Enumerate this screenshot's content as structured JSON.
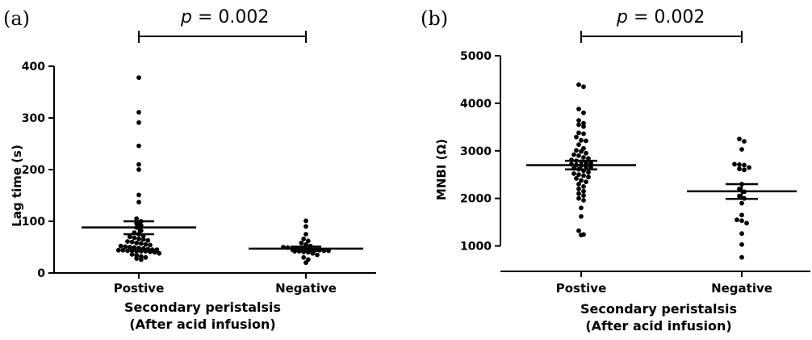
{
  "chart_data": [
    {
      "type": "scatter",
      "panel_label": "(a)",
      "annotation": {
        "p_symbol": "p",
        "p_text": " = 0.002"
      },
      "ylabel": "Lag time (s)",
      "xlabel_lines": [
        "Secondary peristalsis",
        "(After acid infusion)"
      ],
      "categories": [
        "Postive",
        "Negative"
      ],
      "ylim": [
        0,
        400
      ],
      "yticks": [
        0,
        100,
        200,
        300,
        400
      ],
      "grid": false,
      "series": [
        {
          "values": [
            378,
            311,
            291,
            246,
            210,
            200,
            151,
            137,
            105,
            100,
            96,
            92,
            88,
            82,
            78,
            75,
            72,
            70,
            68,
            66,
            65,
            63,
            61,
            60,
            58,
            57,
            55,
            54,
            52,
            51,
            50,
            49,
            48,
            47,
            46,
            45,
            45,
            44,
            44,
            43,
            43,
            42,
            42,
            42,
            41,
            40,
            38,
            36,
            34,
            32,
            30,
            28,
            26
          ],
          "mean": 88,
          "sem_low": 75,
          "sem_high": 100
        },
        {
          "values": [
            101,
            90,
            75,
            66,
            62,
            58,
            55,
            52,
            50,
            49,
            48,
            47,
            46,
            45,
            45,
            44,
            44,
            43,
            43,
            42,
            42,
            41,
            40,
            38,
            35,
            30,
            26,
            20
          ],
          "mean": 47,
          "sem_low": 43,
          "sem_high": 51
        }
      ]
    },
    {
      "type": "scatter",
      "panel_label": "(b)",
      "annotation": {
        "p_symbol": "p",
        "p_text": " = 0.002"
      },
      "ylabel": "MNBI (Ω)",
      "xlabel_lines": [
        "Secondary peristalsis",
        "(After acid infusion)"
      ],
      "categories": [
        "Postive",
        "Negative"
      ],
      "ylim": [
        500,
        5000
      ],
      "yticks": [
        1000,
        2000,
        3000,
        4000,
        5000
      ],
      "grid": false,
      "series": [
        {
          "values": [
            4390,
            4350,
            3880,
            3800,
            3640,
            3580,
            3550,
            3510,
            3380,
            3360,
            3290,
            3220,
            3210,
            3130,
            3050,
            3010,
            2990,
            2950,
            2920,
            2900,
            2860,
            2840,
            2810,
            2790,
            2770,
            2750,
            2740,
            2720,
            2700,
            2690,
            2670,
            2650,
            2630,
            2610,
            2580,
            2550,
            2520,
            2500,
            2480,
            2450,
            2420,
            2380,
            2350,
            2300,
            2250,
            2200,
            2150,
            2100,
            2060,
            2000,
            1960,
            1800,
            1620,
            1320,
            1240,
            1230
          ],
          "mean": 2700,
          "sem_low": 2610,
          "sem_high": 2790
        },
        {
          "values": [
            3250,
            3200,
            3030,
            2720,
            2710,
            2700,
            2650,
            2620,
            2600,
            2300,
            2200,
            2140,
            2050,
            2000,
            1900,
            1650,
            1550,
            1530,
            1480,
            1260,
            1030,
            760
          ],
          "mean": 2150,
          "sem_low": 1990,
          "sem_high": 2300
        }
      ]
    }
  ]
}
